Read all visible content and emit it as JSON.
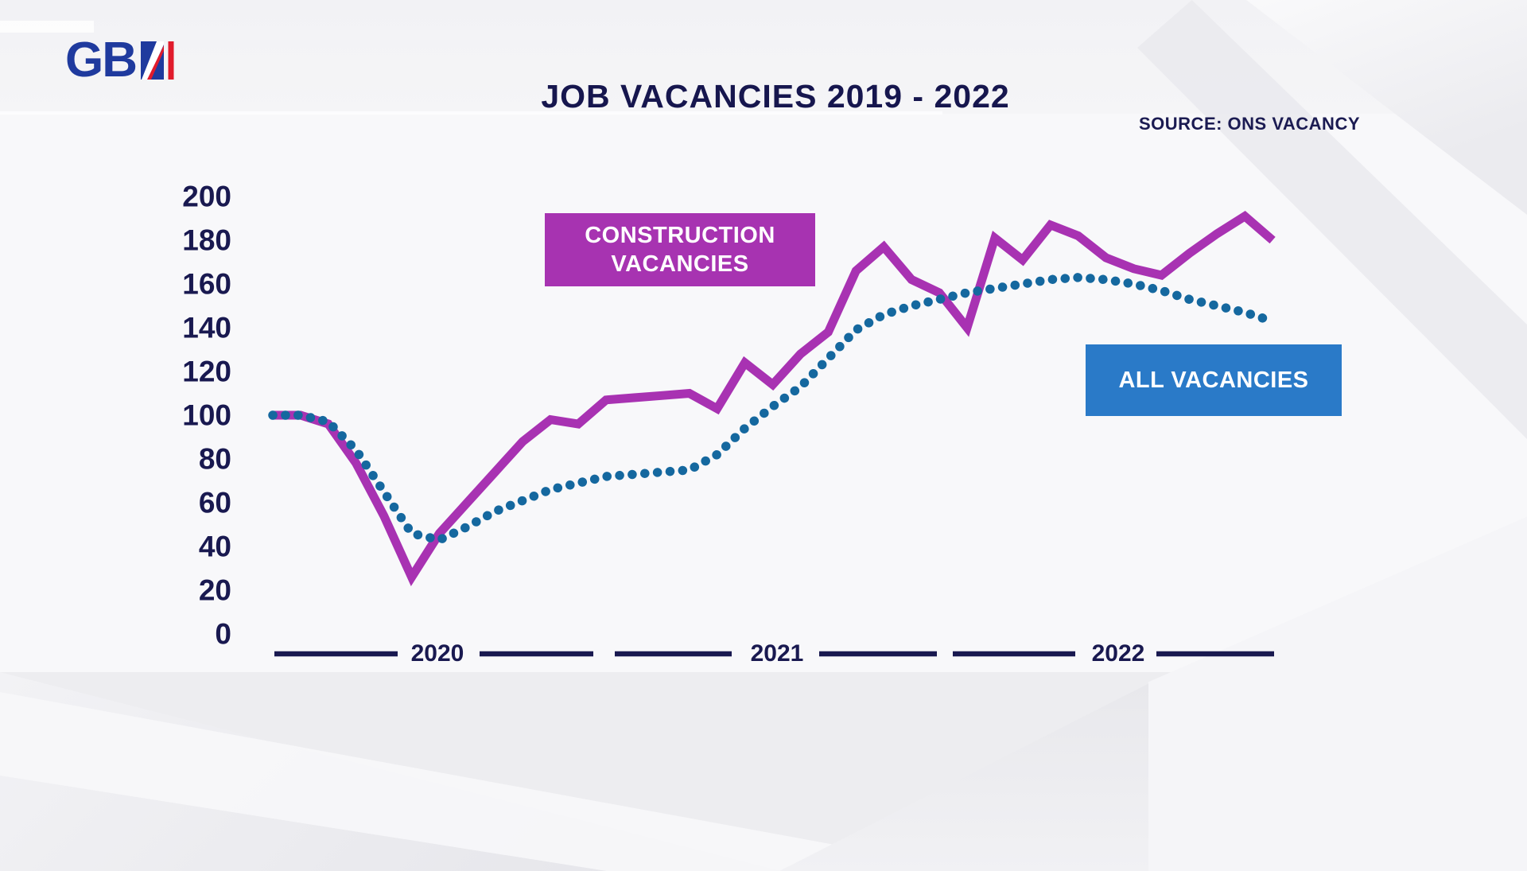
{
  "brand": {
    "logo_text": "GB",
    "logo_colors": {
      "blue": "#1f3a9e",
      "red": "#e11b2c"
    }
  },
  "header": {
    "title": "JOB VACANCIES 2019 - 2022",
    "source": "SOURCE: ONS VACANCY"
  },
  "colors": {
    "navy_text": "#191950",
    "construction_line": "#a832b2",
    "all_vacancies_dots": "#15689f",
    "construction_box": "#a733b1",
    "all_vacancies_box": "#2a7ac8",
    "chart_background": "#f8f8fa"
  },
  "chart_data": {
    "type": "line",
    "title": "JOB VACANCIES 2019 - 2022",
    "source": "SOURCE: ONS VACANCY",
    "grid": false,
    "x_axis": {
      "labels": [
        "2020",
        "2021",
        "2022"
      ]
    },
    "y_axis": {
      "ticks": [
        200,
        180,
        160,
        140,
        120,
        100,
        80,
        60,
        40,
        20,
        0
      ],
      "lim": [
        0,
        200
      ]
    },
    "legend": [
      {
        "label": "CONSTRUCTION VACANCIES",
        "color": "#a733b1",
        "style": "solid",
        "position": "upper-left of plot"
      },
      {
        "label": "ALL VACANCIES",
        "color": "#2a7ac8",
        "style": "dotted",
        "position": "right of plot"
      }
    ],
    "series": [
      {
        "name": "CONSTRUCTION VACANCIES",
        "color": "#a832b2",
        "line_style": "solid",
        "values": [
          100,
          100,
          96,
          78,
          54,
          26,
          46,
          60,
          74,
          88,
          98,
          96,
          107,
          108,
          109,
          110,
          103,
          124,
          114,
          128,
          138,
          166,
          177,
          162,
          156,
          140,
          181,
          171,
          187,
          182,
          172,
          167,
          164,
          174,
          183,
          191,
          180
        ]
      },
      {
        "name": "ALL VACANCIES",
        "color": "#15689f",
        "line_style": "dotted",
        "values": [
          100,
          100,
          97,
          84,
          65,
          46,
          43,
          49,
          56,
          61,
          66,
          69,
          72,
          73,
          74,
          75,
          82,
          94,
          104,
          113,
          126,
          139,
          146,
          150,
          153,
          156,
          158,
          160,
          162,
          163,
          162,
          160,
          157,
          153,
          150,
          147,
          143
        ]
      }
    ]
  }
}
